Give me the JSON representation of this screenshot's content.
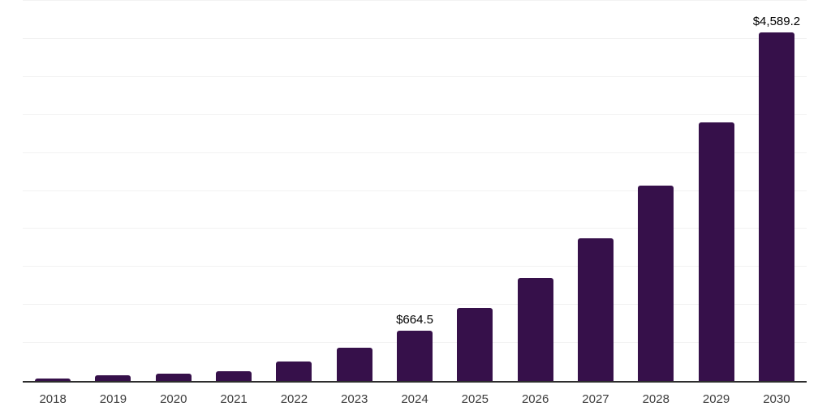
{
  "chart_data": {
    "type": "bar",
    "title": "",
    "xlabel": "",
    "ylabel": "",
    "categories": [
      "2018",
      "2019",
      "2020",
      "2021",
      "2022",
      "2023",
      "2024",
      "2025",
      "2026",
      "2027",
      "2028",
      "2029",
      "2030"
    ],
    "values": [
      35,
      72,
      98,
      131,
      256,
      440,
      664.5,
      958,
      1352,
      1874,
      2568,
      3400,
      4589.2
    ],
    "data_labels": [
      "",
      "",
      "",
      "",
      "",
      "",
      "$664.5",
      "",
      "",
      "",
      "",
      "",
      "$4,589.2"
    ],
    "ylim": [
      0,
      5000
    ],
    "gridline_step": 500,
    "grid": "horizontal",
    "legend": "none",
    "y_axis_tick_labels_visible": false
  },
  "colors": {
    "background": "#ffffff",
    "bar": "#36104A",
    "axis_line": "#2d2d2d",
    "gridline": "#f2f2f2",
    "tick_label": "#3c3c3c",
    "data_label": "#000000"
  }
}
